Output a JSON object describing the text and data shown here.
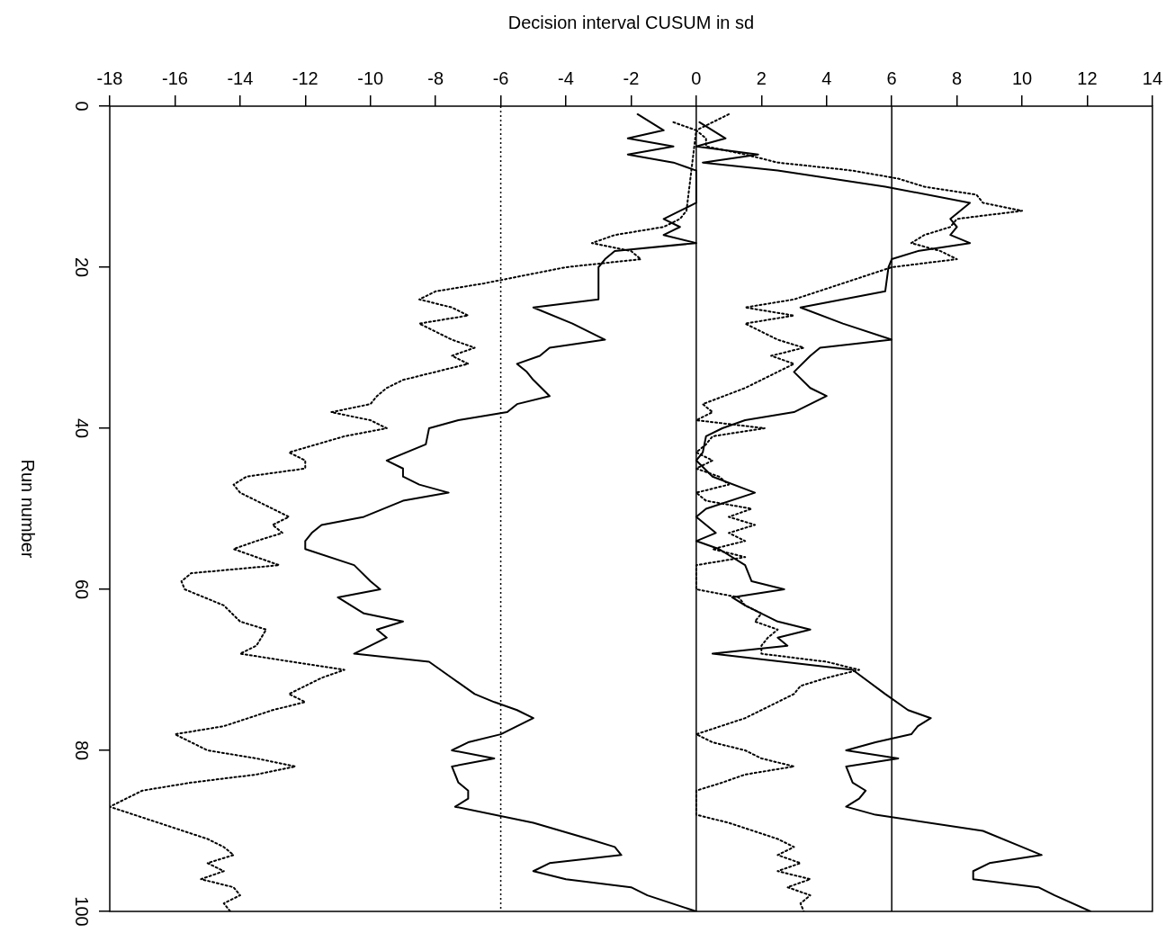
{
  "chart_data": {
    "type": "line",
    "orientation": "horizontal",
    "xlabel": "Decision interval CUSUM in sd",
    "ylabel": "Run number",
    "xlim": [
      -18,
      14
    ],
    "xticks": [
      -18,
      -16,
      -14,
      -12,
      -10,
      -8,
      -6,
      -4,
      -2,
      0,
      2,
      4,
      6,
      8,
      10,
      12,
      14
    ],
    "ylim": [
      100,
      0
    ],
    "yticks": [
      0,
      20,
      40,
      60,
      80,
      100
    ],
    "grid": false,
    "legend": false,
    "marker": "none",
    "ref_lines": [
      {
        "axis": "x",
        "value": -6,
        "line_style": "dotted",
        "color": "#000000"
      },
      {
        "axis": "x",
        "value": 0,
        "line_style": "solid",
        "color": "#000000"
      },
      {
        "axis": "x",
        "value": 6,
        "line_style": "solid",
        "color": "#000000"
      }
    ],
    "series": [
      {
        "color": "#000000",
        "line_style": "solid",
        "x": [
          2,
          4,
          5,
          6,
          7,
          8,
          10,
          12,
          14,
          15,
          16,
          17,
          18,
          19,
          20,
          23,
          25,
          27,
          29,
          30,
          31,
          33,
          35,
          36,
          38,
          39,
          40,
          41,
          43,
          44,
          46,
          48,
          50,
          51,
          53,
          54,
          55,
          57,
          59,
          60,
          61,
          62,
          64,
          65,
          66,
          67,
          68,
          70,
          73,
          75,
          76,
          77,
          78,
          79,
          80,
          81,
          82,
          84,
          85,
          86,
          87,
          88,
          90,
          92,
          93,
          94,
          95,
          96,
          97,
          98,
          100
        ],
        "values": [
          0.1,
          0.9,
          0,
          1.9,
          0.2,
          2.5,
          5.8,
          8.4,
          7.8,
          8.0,
          7.8,
          8.4,
          6.8,
          6.0,
          5.9,
          5.8,
          3.2,
          4.5,
          6.0,
          3.8,
          3.5,
          3.0,
          3.5,
          4.0,
          3.0,
          1.5,
          0.8,
          0.3,
          0.2,
          0,
          0.5,
          1.8,
          0.3,
          0,
          0.6,
          0,
          0.7,
          1.5,
          1.7,
          2.7,
          1.1,
          1.5,
          2.5,
          3.5,
          2.5,
          2.8,
          0.5,
          4.8,
          5.8,
          6.5,
          7.2,
          6.8,
          6.6,
          5.5,
          4.6,
          6.2,
          4.6,
          4.8,
          5.2,
          5.0,
          4.6,
          5.5,
          8.8,
          10.0,
          10.6,
          9.0,
          8.5,
          8.5,
          10.5,
          11.0,
          12.1
        ]
      },
      {
        "color": "#000000",
        "line_style": "solid",
        "x": [
          1,
          3,
          4,
          5,
          6,
          7,
          8,
          12,
          13,
          14,
          15,
          16,
          17,
          18,
          19,
          20,
          22,
          24,
          25,
          27,
          29,
          30,
          31,
          32,
          33,
          34,
          36,
          37,
          38,
          39,
          40,
          42,
          44,
          45,
          46,
          47,
          48,
          49,
          51,
          52,
          53,
          54,
          55,
          57,
          59,
          60,
          61,
          63,
          64,
          65,
          66,
          67,
          68,
          69,
          71,
          73,
          74,
          75,
          76,
          77,
          78,
          79,
          80,
          81,
          82,
          84,
          85,
          86,
          87,
          89,
          91,
          92,
          93,
          94,
          95,
          96,
          97,
          98,
          100
        ],
        "values": [
          -1.8,
          -1.0,
          -2.1,
          -0.7,
          -2.1,
          -0.7,
          0,
          0,
          -0.5,
          -1.0,
          -0.5,
          -1.0,
          0,
          -2.5,
          -2.8,
          -3.0,
          -3.0,
          -3.0,
          -5.0,
          -3.8,
          -2.8,
          -4.5,
          -4.8,
          -5.5,
          -5.2,
          -5.0,
          -4.5,
          -5.5,
          -5.8,
          -7.3,
          -8.2,
          -8.3,
          -9.5,
          -9.0,
          -9.0,
          -8.5,
          -7.6,
          -9.0,
          -10.2,
          -11.5,
          -11.8,
          -12.0,
          -12.0,
          -10.5,
          -10.0,
          -9.7,
          -11.0,
          -10.2,
          -9.0,
          -9.8,
          -9.5,
          -10.0,
          -10.5,
          -8.2,
          -7.5,
          -6.8,
          -6.2,
          -5.5,
          -5.0,
          -5.5,
          -6.0,
          -7.0,
          -7.5,
          -6.2,
          -7.5,
          -7.3,
          -7.0,
          -7.0,
          -7.4,
          -5.0,
          -3.3,
          -2.5,
          -2.3,
          -4.5,
          -5.0,
          -4.0,
          -2.0,
          -1.5,
          0
        ]
      },
      {
        "color": "#000000",
        "line_style": "dotted",
        "x": [
          1,
          2,
          3,
          4,
          5,
          6,
          7,
          8,
          9,
          10,
          11,
          12,
          13,
          14,
          15,
          16,
          17,
          18,
          19,
          20,
          22,
          24,
          25,
          26,
          27,
          28,
          29,
          30,
          31,
          32,
          33,
          35,
          37,
          38,
          39,
          40,
          41,
          42,
          43,
          44,
          45,
          46,
          47,
          48,
          49,
          50,
          51,
          52,
          53,
          54,
          55,
          56,
          57,
          60,
          61,
          62,
          63,
          64,
          65,
          66,
          67,
          68,
          69,
          70,
          71,
          72,
          73,
          74,
          76,
          78,
          79,
          80,
          81,
          82,
          83,
          84,
          85,
          88,
          89,
          91,
          92,
          93,
          94,
          95,
          96,
          97,
          98,
          99,
          100
        ],
        "values": [
          1.0,
          0.5,
          0,
          0.3,
          0.3,
          1.5,
          2.5,
          4.8,
          6.2,
          7.0,
          8.6,
          8.8,
          10.0,
          8.0,
          7.8,
          7.0,
          6.6,
          7.5,
          8.0,
          6.0,
          4.5,
          3.0,
          1.5,
          3.0,
          1.5,
          2.0,
          2.5,
          3.3,
          2.3,
          3.0,
          2.5,
          1.5,
          0.2,
          0.5,
          0,
          2.1,
          0.5,
          0.3,
          0,
          0.5,
          0,
          0.7,
          1.0,
          0,
          0.3,
          1.7,
          1.0,
          1.8,
          1.0,
          1.5,
          0.5,
          1.5,
          0,
          0,
          1.3,
          1.5,
          2.0,
          1.8,
          2.5,
          2.2,
          2.0,
          2.0,
          4.0,
          5.0,
          4.0,
          3.2,
          3.0,
          2.5,
          1.5,
          0,
          0.5,
          1.5,
          2.0,
          3.0,
          1.5,
          0.8,
          0,
          0,
          1.0,
          2.5,
          3.0,
          2.5,
          3.2,
          2.5,
          3.5,
          2.8,
          3.5,
          3.2,
          3.3
        ]
      },
      {
        "color": "#000000",
        "line_style": "dotted",
        "x": [
          2,
          3,
          13,
          14,
          15,
          16,
          17,
          18,
          19,
          20,
          22,
          23,
          24,
          25,
          26,
          27,
          28,
          29,
          30,
          31,
          32,
          33,
          34,
          35,
          36,
          37,
          38,
          39,
          40,
          41,
          43,
          44,
          45,
          46,
          47,
          48,
          49,
          50,
          51,
          52,
          53,
          54,
          55,
          56,
          57,
          58,
          59,
          60,
          62,
          64,
          65,
          67,
          68,
          70,
          71,
          72,
          73,
          74,
          75,
          77,
          78,
          79,
          80,
          81,
          82,
          83,
          84,
          85,
          86,
          87,
          89,
          91,
          92,
          93,
          94,
          95,
          96,
          97,
          98,
          99,
          100
        ],
        "values": [
          -0.7,
          0,
          -0.3,
          -0.5,
          -1.0,
          -2.5,
          -3.2,
          -2.0,
          -1.7,
          -4.0,
          -6.5,
          -8.0,
          -8.5,
          -7.5,
          -7.0,
          -8.5,
          -8.0,
          -7.5,
          -6.8,
          -7.5,
          -7.0,
          -8.0,
          -9.0,
          -9.5,
          -9.8,
          -10.0,
          -11.2,
          -10.0,
          -9.5,
          -10.8,
          -12.5,
          -12.0,
          -12.0,
          -13.8,
          -14.2,
          -14.0,
          -13.5,
          -13.0,
          -12.5,
          -13.0,
          -12.7,
          -13.5,
          -14.2,
          -13.5,
          -12.8,
          -15.5,
          -15.8,
          -15.7,
          -14.5,
          -14.0,
          -13.2,
          -13.5,
          -14.0,
          -10.8,
          -11.5,
          -12.0,
          -12.5,
          -12.0,
          -13.0,
          -14.5,
          -16.0,
          -15.5,
          -15.0,
          -13.5,
          -12.3,
          -13.5,
          -15.5,
          -17.0,
          -17.5,
          -18.0,
          -16.5,
          -15.0,
          -14.5,
          -14.2,
          -15.0,
          -14.5,
          -15.2,
          -14.2,
          -14.0,
          -14.5,
          -14.3
        ]
      }
    ]
  }
}
